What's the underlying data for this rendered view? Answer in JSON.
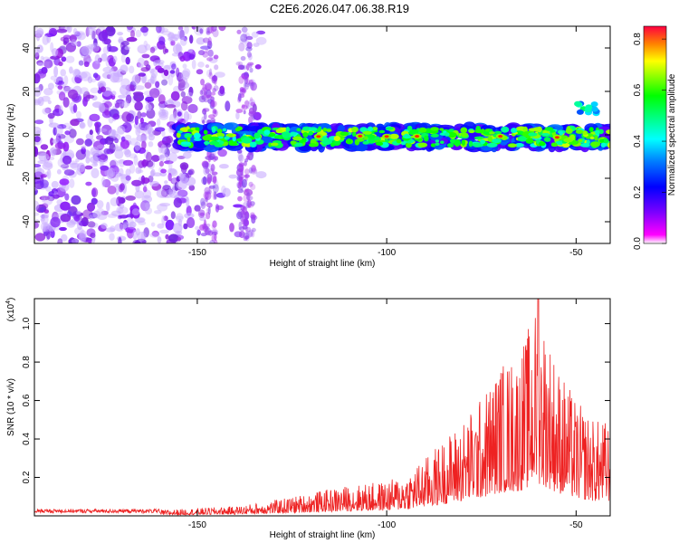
{
  "title": "C2E6.2026.047.06.38.R19",
  "chart_data": [
    {
      "type": "heatmap",
      "title": "C2E6.2026.047.06.38.R19",
      "xlabel": "Height of straight line (km)",
      "ylabel": "Frequency (Hz)",
      "xlim": [
        -193,
        -41
      ],
      "ylim": [
        -50,
        50
      ],
      "x_ticks": [
        -150,
        -100,
        -50
      ],
      "y_ticks": [
        -40,
        -20,
        0,
        20,
        40
      ],
      "colorbar": {
        "label": "Normalized spectral amplitude",
        "range": [
          0.0,
          0.85
        ],
        "ticks": [
          0.0,
          0.2,
          0.4,
          0.6,
          0.8
        ],
        "colormap": [
          "#ff00ff",
          "#7f00ff",
          "#0000ff",
          "#0080ff",
          "#00ffff",
          "#00ff80",
          "#00ff00",
          "#80ff00",
          "#ffff00",
          "#ff8000",
          "#ff0000"
        ]
      },
      "features": [
        {
          "name": "noise",
          "x_range": [
            -193,
            -133
          ],
          "freq_range": [
            -50,
            50
          ],
          "amplitude": 0.05
        },
        {
          "name": "signal band",
          "x_range": [
            -155,
            -41
          ],
          "freq_center": -1,
          "freq_halfwidth": 5,
          "amplitude_peak": 0.85
        },
        {
          "name": "upper blob",
          "x_range": [
            -50,
            -44
          ],
          "freq_center": 12,
          "amplitude": 0.4
        }
      ]
    },
    {
      "type": "line",
      "xlabel": "Height of straight line (km)",
      "ylabel": "SNR (10 * v/v)",
      "y_scale_label": "(x10",
      "y_scale_exp": "4",
      "xlim": [
        -193,
        -41
      ],
      "ylim": [
        0,
        1.13
      ],
      "x_ticks": [
        -150,
        -100,
        -50
      ],
      "y_ticks": [
        0.2,
        0.4,
        0.6,
        0.8,
        1.0
      ],
      "series": [
        {
          "name": "SNR",
          "color": "#ee2222",
          "envelope": {
            "x": [
              -193,
              -160,
              -150,
              -140,
              -130,
              -120,
              -110,
              -100,
              -95,
              -90,
              -85,
              -80,
              -75,
              -70,
              -65,
              -60,
              -55,
              -50,
              -45,
              -41
            ],
            "y": [
              0.03,
              0.03,
              0.04,
              0.05,
              0.08,
              0.12,
              0.16,
              0.18,
              0.22,
              0.3,
              0.4,
              0.5,
              0.62,
              0.8,
              0.85,
              1.13,
              0.8,
              0.6,
              0.5,
              0.5
            ]
          }
        }
      ]
    }
  ]
}
